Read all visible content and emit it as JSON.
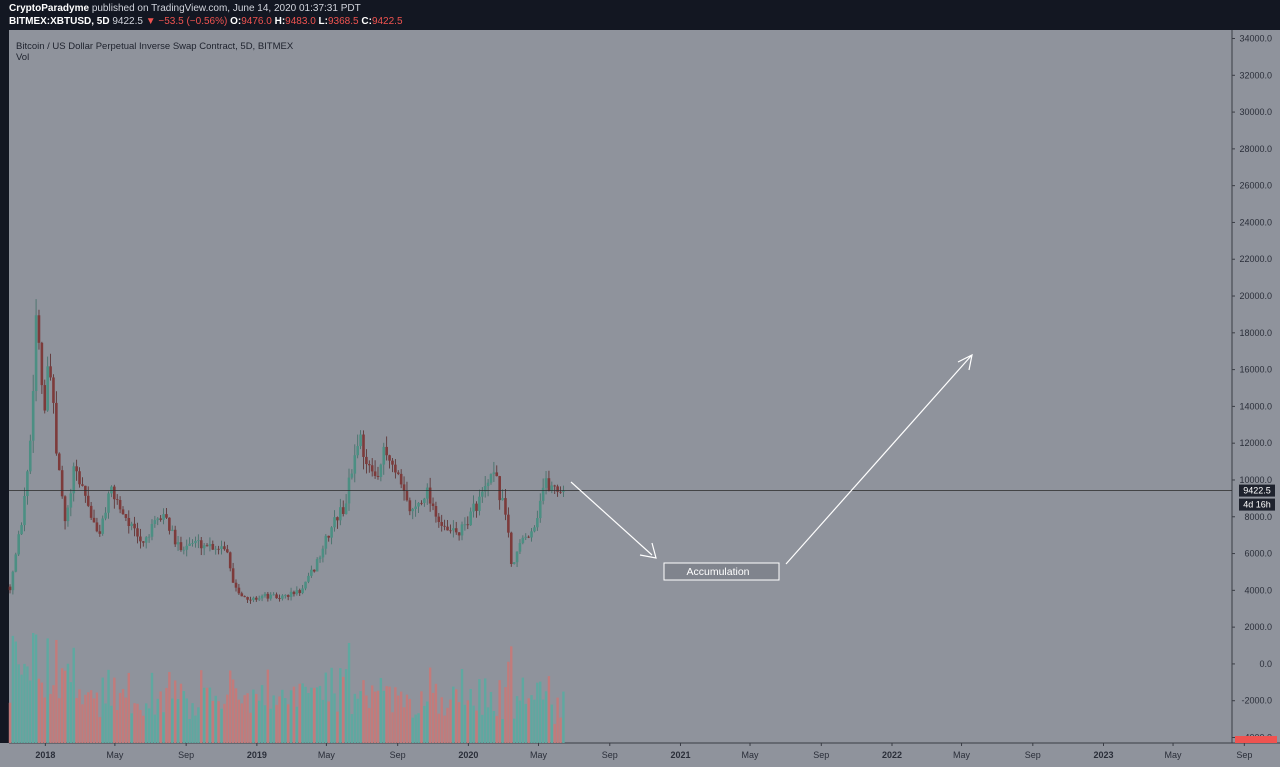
{
  "header": {
    "author": "CryptoParadyme",
    "published": "published on TradingView.com, June 14, 2020 01:37:31 PDT",
    "symbol": "BITMEX:XBTUSD, 5D",
    "last": "9422.5",
    "change": "▼ −53.5 (−0.56%)",
    "o_label": "O:",
    "o_value": "9476.0",
    "h_label": "H:",
    "h_value": "9483.0",
    "l_label": "L:",
    "l_value": "9368.5",
    "c_label": "C:",
    "c_value": "9422.5"
  },
  "legend": {
    "title": "Bitcoin / US Dollar Perpetual Inverse Swap Contract, 5D, BITMEX",
    "vol": "Vol"
  },
  "price_axis": {
    "labels": [
      "34000.0",
      "32000.0",
      "30000.0",
      "28000.0",
      "26000.0",
      "24000.0",
      "22000.0",
      "20000.0",
      "18000.0",
      "16000.0",
      "14000.0",
      "12000.0",
      "10000.0",
      "8000.0",
      "6000.0",
      "4000.0",
      "2000.0",
      "0.0",
      "-2000.0",
      "-4000.0"
    ],
    "last_price_badge": "9422.5",
    "countdown_badge": "4d 16h"
  },
  "time_axis": {
    "labels": [
      "2018",
      "May",
      "Sep",
      "2019",
      "May",
      "Sep",
      "2020",
      "May",
      "Sep",
      "2021",
      "May",
      "Sep",
      "2022",
      "May",
      "Sep",
      "2023",
      "May",
      "Sep"
    ]
  },
  "annotation": {
    "label": "Accumulation"
  },
  "colors": {
    "background": "#8f939c",
    "up": "#4c8f83",
    "down": "#7d3b3b",
    "vol_up": "#5fa8a0",
    "vol_down": "#c27b7b",
    "annotation": "#ffffff",
    "header_bg": "#131722"
  },
  "chart_data": {
    "type": "candlestick",
    "title": "Bitcoin / US Dollar Perpetual Inverse Swap Contract, 5D, BITMEX",
    "interval": "5D",
    "ylim": [
      -4000,
      34000
    ],
    "close_path": [
      [
        "2017-11-01",
        4200
      ],
      [
        "2017-11-20",
        7500
      ],
      [
        "2017-12-05",
        11500
      ],
      [
        "2017-12-17",
        19500
      ],
      [
        "2017-12-30",
        13500
      ],
      [
        "2018-01-08",
        16500
      ],
      [
        "2018-01-20",
        11500
      ],
      [
        "2018-02-05",
        7500
      ],
      [
        "2018-02-20",
        10500
      ],
      [
        "2018-03-08",
        9500
      ],
      [
        "2018-04-01",
        6900
      ],
      [
        "2018-04-25",
        9400
      ],
      [
        "2018-05-20",
        8000
      ],
      [
        "2018-06-15",
        6500
      ],
      [
        "2018-07-25",
        8200
      ],
      [
        "2018-08-15",
        6400
      ],
      [
        "2018-09-15",
        6600
      ],
      [
        "2018-10-20",
        6400
      ],
      [
        "2018-11-10",
        6400
      ],
      [
        "2018-11-20",
        4500
      ],
      [
        "2018-12-15",
        3400
      ],
      [
        "2019-01-10",
        3700
      ],
      [
        "2019-02-10",
        3600
      ],
      [
        "2019-03-20",
        4000
      ],
      [
        "2019-04-10",
        5200
      ],
      [
        "2019-05-15",
        7800
      ],
      [
        "2019-06-01",
        8500
      ],
      [
        "2019-06-26",
        12500
      ],
      [
        "2019-07-20",
        10000
      ],
      [
        "2019-08-10",
        11500
      ],
      [
        "2019-09-01",
        10000
      ],
      [
        "2019-09-25",
        8200
      ],
      [
        "2019-10-20",
        9500
      ],
      [
        "2019-11-20",
        7200
      ],
      [
        "2019-12-20",
        7200
      ],
      [
        "2020-01-15",
        8700
      ],
      [
        "2020-02-15",
        10200
      ],
      [
        "2020-03-08",
        8000
      ],
      [
        "2020-03-15",
        5200
      ],
      [
        "2020-04-01",
        6600
      ],
      [
        "2020-04-25",
        7600
      ],
      [
        "2020-05-10",
        9800
      ],
      [
        "2020-06-14",
        9422.5
      ]
    ],
    "last_price": 9422.5,
    "volume_scale": "overlay (bottom)"
  }
}
